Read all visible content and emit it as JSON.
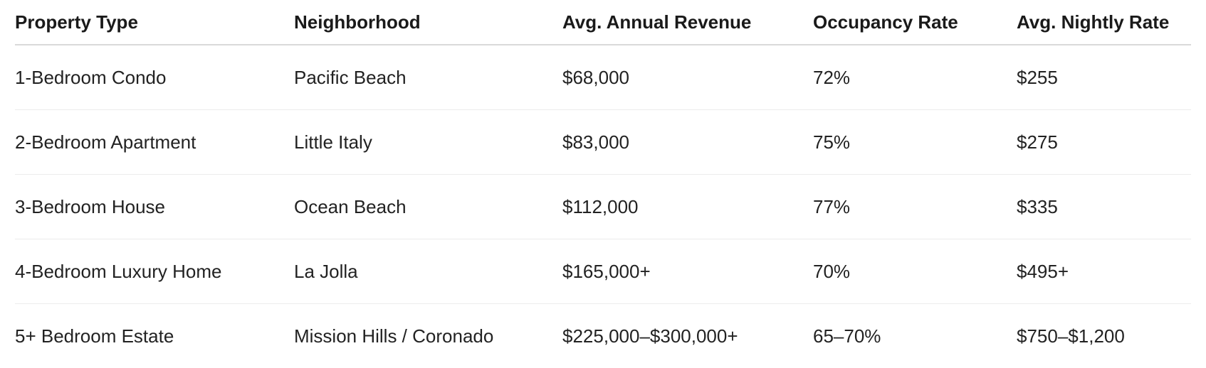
{
  "table": {
    "headers": [
      "Property Type",
      "Neighborhood",
      "Avg. Annual Revenue",
      "Occupancy Rate",
      "Avg. Nightly Rate"
    ],
    "rows": [
      [
        "1-Bedroom Condo",
        "Pacific Beach",
        "$68,000",
        "72%",
        "$255"
      ],
      [
        "2-Bedroom Apartment",
        "Little Italy",
        "$83,000",
        "75%",
        "$275"
      ],
      [
        "3-Bedroom House",
        "Ocean Beach",
        "$112,000",
        "77%",
        "$335"
      ],
      [
        "4-Bedroom Luxury Home",
        "La Jolla",
        "$165,000+",
        "70%",
        "$495+"
      ],
      [
        "5+ Bedroom Estate",
        "Mission Hills / Coronado",
        "$225,000–$300,000+",
        "65–70%",
        "$750–$1,200"
      ]
    ]
  }
}
